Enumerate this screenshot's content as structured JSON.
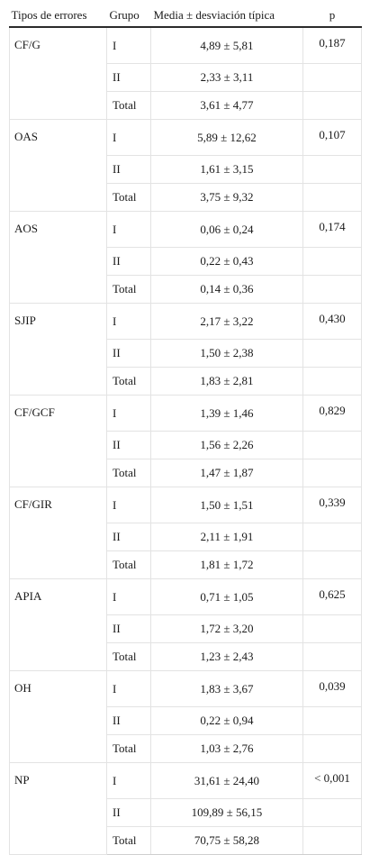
{
  "table": {
    "headers": {
      "error_type": "Tipos de errores",
      "group": "Grupo",
      "mean_sd": "Media ± desviación típica",
      "p": "p"
    },
    "groups": [
      {
        "name": "CF/G",
        "p": "0,187",
        "rows": [
          {
            "group": "I",
            "value": "4,89 ± 5,81"
          },
          {
            "group": "II",
            "value": "2,33 ± 3,11"
          },
          {
            "group": "Total",
            "value": "3,61 ± 4,77"
          }
        ]
      },
      {
        "name": "OAS",
        "p": "0,107",
        "rows": [
          {
            "group": "I",
            "value": "5,89 ± 12,62"
          },
          {
            "group": "II",
            "value": "1,61 ± 3,15"
          },
          {
            "group": "Total",
            "value": "3,75 ± 9,32"
          }
        ]
      },
      {
        "name": "AOS",
        "p": "0,174",
        "rows": [
          {
            "group": "I",
            "value": "0,06 ± 0,24"
          },
          {
            "group": "II",
            "value": "0,22 ± 0,43"
          },
          {
            "group": "Total",
            "value": "0,14 ± 0,36"
          }
        ]
      },
      {
        "name": "SJIP",
        "p": "0,430",
        "rows": [
          {
            "group": "I",
            "value": "2,17 ± 3,22"
          },
          {
            "group": "II",
            "value": "1,50 ± 2,38"
          },
          {
            "group": "Total",
            "value": "1,83 ± 2,81"
          }
        ]
      },
      {
        "name": "CF/GCF",
        "p": "0,829",
        "rows": [
          {
            "group": "I",
            "value": "1,39 ± 1,46"
          },
          {
            "group": "II",
            "value": "1,56 ± 2,26"
          },
          {
            "group": "Total",
            "value": "1,47 ± 1,87"
          }
        ]
      },
      {
        "name": "CF/GIR",
        "p": "0,339",
        "rows": [
          {
            "group": "I",
            "value": "1,50 ± 1,51"
          },
          {
            "group": "II",
            "value": "2,11 ± 1,91"
          },
          {
            "group": "Total",
            "value": "1,81 ± 1,72"
          }
        ]
      },
      {
        "name": "APIA",
        "p": "0,625",
        "rows": [
          {
            "group": "I",
            "value": "0,71 ± 1,05"
          },
          {
            "group": "II",
            "value": "1,72 ± 3,20"
          },
          {
            "group": "Total",
            "value": "1,23 ± 2,43"
          }
        ]
      },
      {
        "name": "OH",
        "p": "0,039",
        "rows": [
          {
            "group": "I",
            "value": "1,83 ± 3,67"
          },
          {
            "group": "II",
            "value": "0,22 ± 0,94"
          },
          {
            "group": "Total",
            "value": "1,03 ± 2,76"
          }
        ]
      },
      {
        "name": "NP",
        "p": "< 0,001",
        "rows": [
          {
            "group": "I",
            "value": "31,61 ± 24,40"
          },
          {
            "group": "II",
            "value": "109,89 ± 56,15"
          },
          {
            "group": "Total",
            "value": "70,75 ± 58,28"
          }
        ]
      }
    ]
  }
}
